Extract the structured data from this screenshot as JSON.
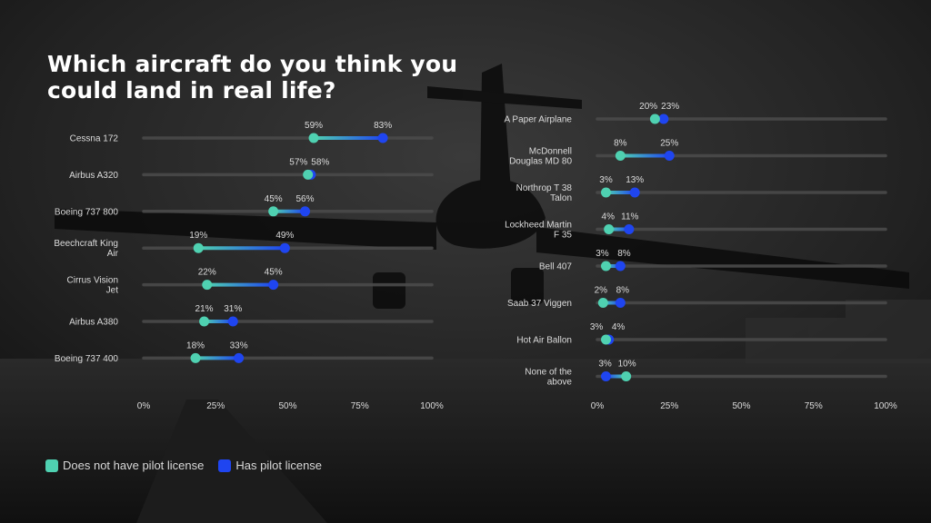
{
  "title": "Which aircraft do you think you could land in real life?",
  "legend": [
    {
      "label": "Does not have pilot license",
      "color": "#4fd1b1"
    },
    {
      "label": "Has pilot license",
      "color": "#1f45f0"
    }
  ],
  "colors": {
    "no_license": "#4fd1b1",
    "license": "#1f45f0",
    "track": "#4a4a4a",
    "text": "#dcdcdc"
  },
  "chart_data": [
    {
      "type": "dot-plot",
      "title": "Which aircraft do you think you could land in real life?",
      "categories": [
        "Cessna 172",
        "Airbus A320",
        "Boeing 737 800",
        "Beechcraft King Air",
        "Cirrus Vision Jet",
        "Airbus A380",
        "Boeing 737 400"
      ],
      "series": [
        {
          "name": "Does not have pilot license",
          "values": [
            59,
            57,
            45,
            19,
            22,
            21,
            18
          ]
        },
        {
          "name": "Has pilot license",
          "values": [
            83,
            58,
            56,
            49,
            45,
            31,
            33
          ]
        }
      ],
      "xlim": [
        0,
        100
      ],
      "xticks": [
        "0%",
        "25%",
        "50%",
        "75%",
        "100%"
      ],
      "unit": "%"
    },
    {
      "type": "dot-plot",
      "categories": [
        "A Paper Airplane",
        "McDonnell Douglas MD 80",
        "Northrop T 38 Talon",
        "Lockheed Martin F 35",
        "Bell 407",
        "Saab 37 Viggen",
        "Hot Air Ballon",
        "None of the above"
      ],
      "series": [
        {
          "name": "Does not have pilot license",
          "values": [
            20,
            8,
            3,
            4,
            3,
            2,
            3,
            10
          ]
        },
        {
          "name": "Has pilot license",
          "values": [
            23,
            25,
            13,
            11,
            8,
            8,
            4,
            3
          ]
        }
      ],
      "xlim": [
        0,
        100
      ],
      "xticks": [
        "0%",
        "25%",
        "50%",
        "75%",
        "100%"
      ],
      "unit": "%"
    }
  ]
}
